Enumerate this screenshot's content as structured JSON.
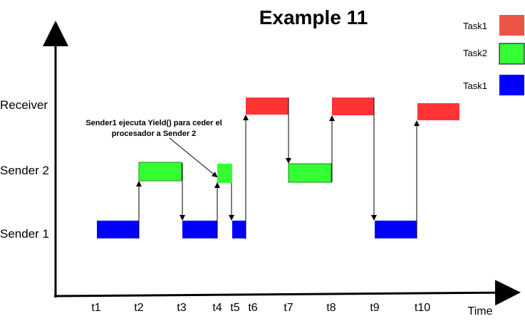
{
  "title": "Example 11",
  "rows": [
    "Receiver",
    "Sender 2",
    "Sender 1"
  ],
  "time_axis_label": "Time",
  "ticks": [
    "t1",
    "t2",
    "t3",
    "t4",
    "t5",
    "t6",
    "t7",
    "t8",
    "t9",
    "t10"
  ],
  "legend": [
    {
      "label": "Task1",
      "color": "#ea5545"
    },
    {
      "label": "Task2",
      "color": "#33ff33"
    },
    {
      "label": "Task1",
      "color": "#0000ff"
    }
  ],
  "annotation": [
    "Sender1 ejecuta Yield() para ceder el",
    "procesador a Sender 2"
  ],
  "segments": [
    {
      "row": "Sender 1",
      "start": "t1",
      "end": "t2",
      "color": "#0000ff"
    },
    {
      "row": "Sender 2",
      "start": "t2",
      "end": "t3",
      "color": "#33ff33"
    },
    {
      "row": "Sender 1",
      "start": "t3",
      "end": "t4",
      "color": "#0000ff"
    },
    {
      "row": "Sender 2",
      "start": "t4",
      "end": "t4+",
      "color": "#33ff33"
    },
    {
      "row": "Sender 1",
      "start": "t5",
      "end": "t5+",
      "color": "#0000ff"
    },
    {
      "row": "Receiver",
      "start": "t6",
      "end": "t6+",
      "color": "#ff3333"
    },
    {
      "row": "Sender 2",
      "start": "t7",
      "end": "t8",
      "color": "#33ff33"
    },
    {
      "row": "Receiver",
      "start": "t8",
      "end": "t8+",
      "color": "#ff3333"
    },
    {
      "row": "Sender 1",
      "start": "t9",
      "end": "t10",
      "color": "#0000ff"
    },
    {
      "row": "Receiver",
      "start": "t10",
      "end": "t10+",
      "color": "#ff3333"
    }
  ]
}
